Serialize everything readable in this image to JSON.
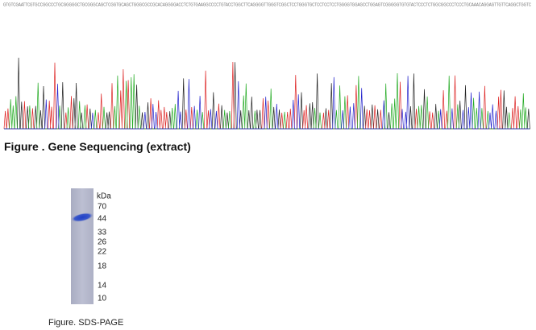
{
  "sequencing": {
    "sequence": "GTGTCGAATTCGTGCCGGCCCTGCGGGGGCTGCGGGCAGCTCGGTGCAGCTGGGCGCCGCACAGGGGACCTCTGTGAAGGCCCCTGTACCTGGCTTCAGGGGTTGGGTCGGCTCCTGGGTGCTCCTCCTCCTGGGGTGGAGCCTGGAGTCGGGGGTGTGTACTCCCTCTGGCGGCCCTCCCTGCAAACAGGAGTTGTTCAGGCTGGTC",
    "caption": "Figure . Gene Sequencing (extract)"
  },
  "gel": {
    "unit": "kDa",
    "markers": [
      "70",
      "44",
      "33",
      "26",
      "22",
      "18",
      "14",
      "10"
    ],
    "caption": "Figure. SDS-PAGE"
  }
}
